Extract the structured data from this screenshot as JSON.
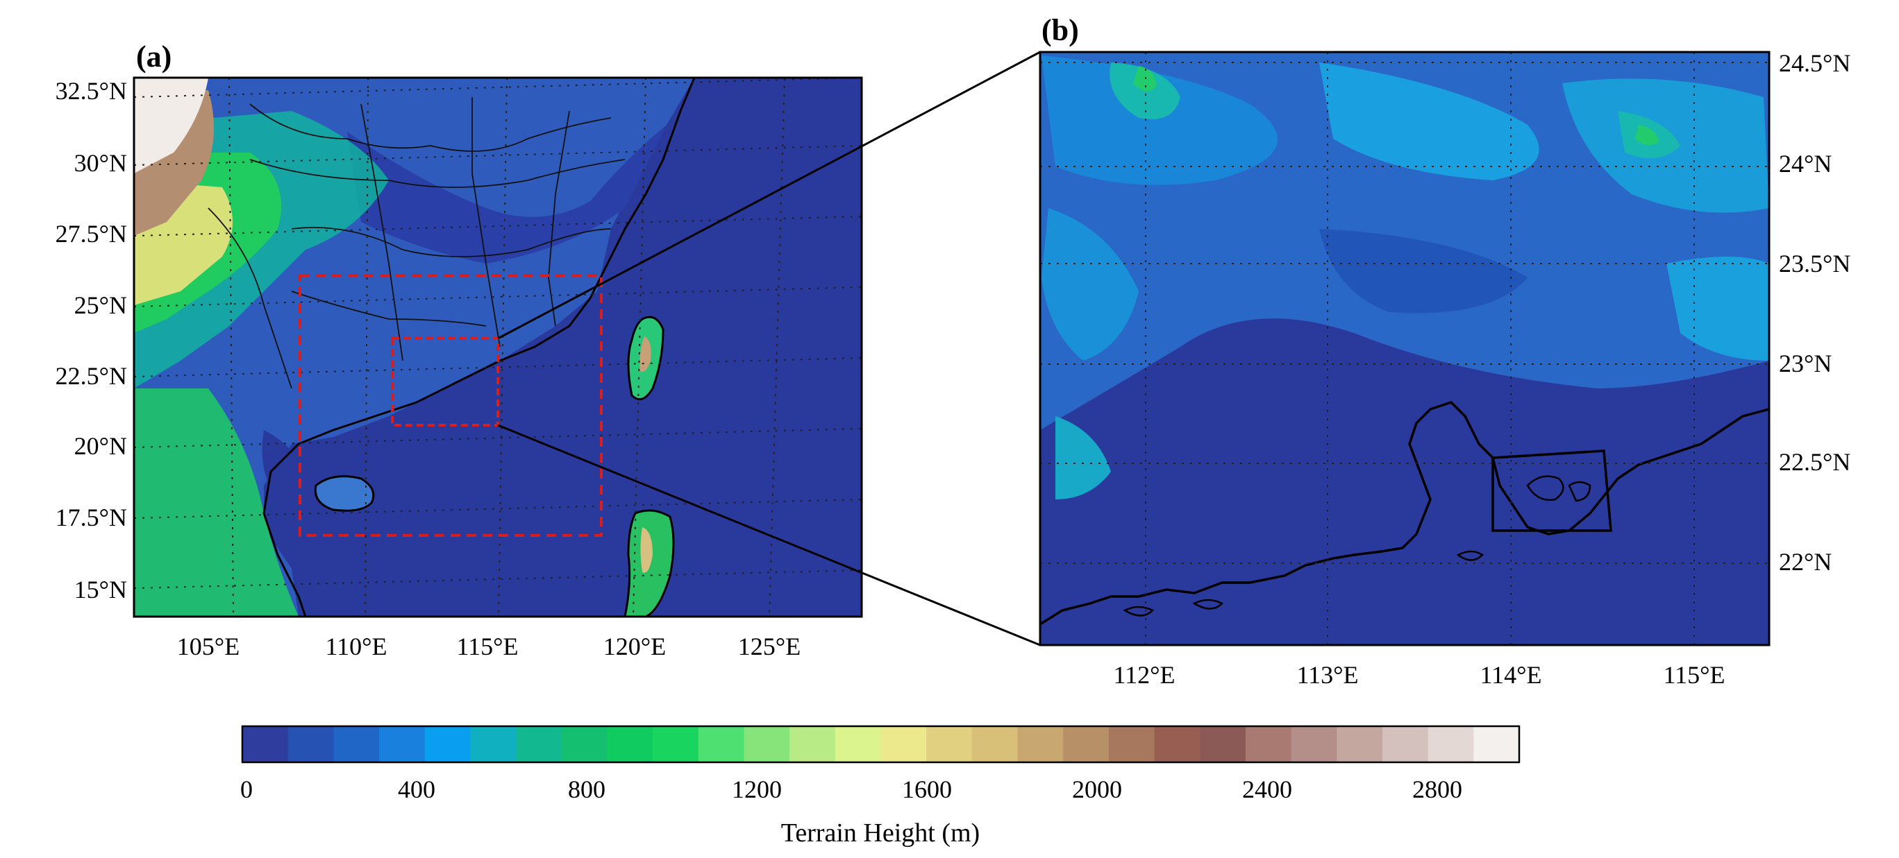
{
  "panel_a": {
    "label": "(a)",
    "lat_labels": [
      "32.5°N",
      "30°N",
      "27.5°N",
      "25°N",
      "22.5°N",
      "20°N",
      "17.5°N",
      "15°N"
    ],
    "lon_labels": [
      "105°E",
      "110°E",
      "115°E",
      "120°E",
      "125°E"
    ]
  },
  "panel_b": {
    "label": "(b)",
    "lat_labels": [
      "24.5°N",
      "24°N",
      "23.5°N",
      "23°N",
      "22.5°N",
      "22°N"
    ],
    "lon_labels": [
      "112°E",
      "113°E",
      "114°E",
      "115°E"
    ]
  },
  "colorbar": {
    "title": "Terrain Height (m)",
    "tick_labels": [
      "0",
      "400",
      "800",
      "1200",
      "1600",
      "2000",
      "2400",
      "2800"
    ],
    "colors": [
      "#2e3d9e",
      "#2652b3",
      "#1f66c7",
      "#1a80dd",
      "#0a9ef0",
      "#10b0c0",
      "#12b890",
      "#14c070",
      "#10cc60",
      "#1ad460",
      "#4ee070",
      "#86e47a",
      "#b8eb86",
      "#dcf48e",
      "#ece88c",
      "#e0d080",
      "#d8c078",
      "#c8a870",
      "#b89068",
      "#a8785e",
      "#985e52",
      "#8c5a56",
      "#a87a72",
      "#b48e88",
      "#c4a8a0",
      "#d4c0bc",
      "#e4d8d4",
      "#f4f0ee"
    ]
  },
  "legend_colors": {
    "domain_box": "#d81e1e",
    "coast": "#000000",
    "ocean": "#2a3a9c"
  }
}
